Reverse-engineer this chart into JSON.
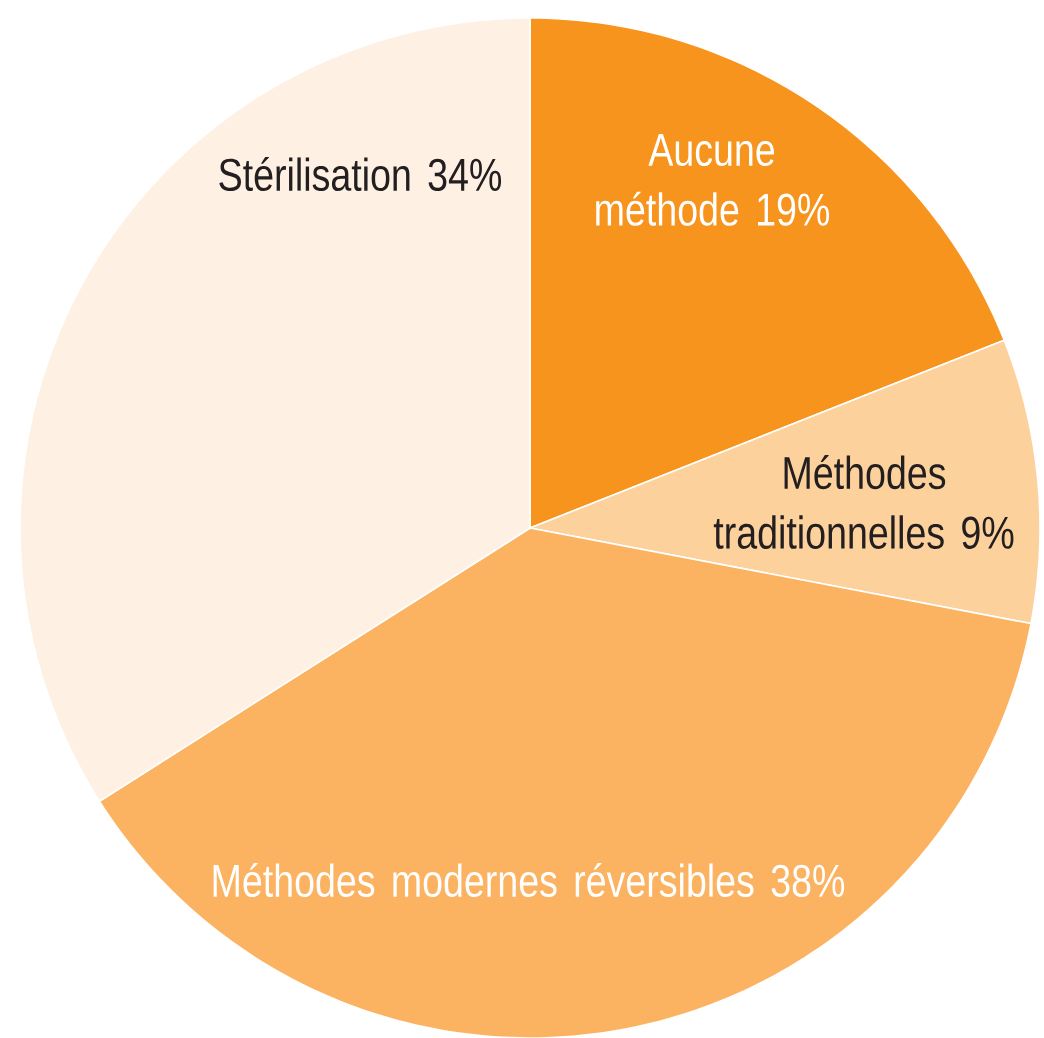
{
  "chart_data": {
    "type": "pie",
    "categories": [
      "Aucune méthode",
      "Méthodes traditionnelles",
      "Méthodes modernes réversibles",
      "Stérilisation"
    ],
    "values": [
      19,
      9,
      38,
      34
    ],
    "colors": [
      "#f7941e",
      "#fcd19c",
      "#fbb362",
      "#fef1e3"
    ],
    "value_labels": [
      "19%",
      "9%",
      "38%",
      "34%"
    ]
  }
}
